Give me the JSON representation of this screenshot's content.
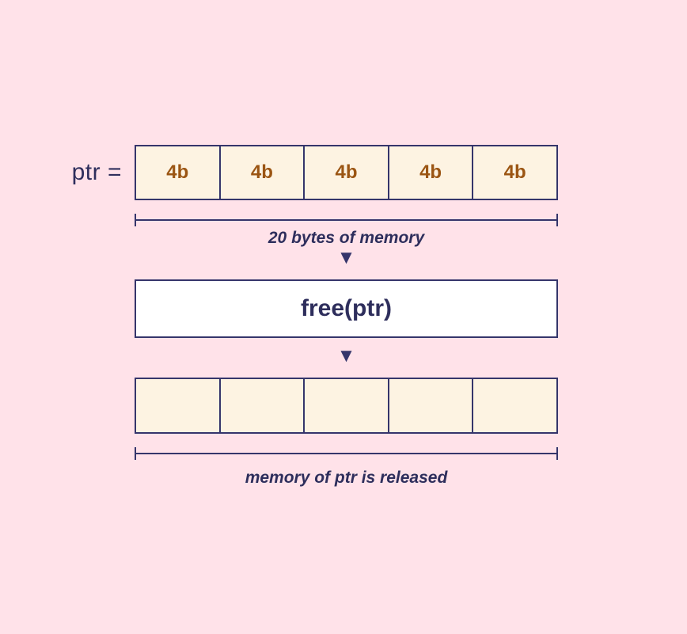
{
  "colors": {
    "background_pink": "#ffe2e9",
    "cell_cream": "#fdf3e2",
    "border_navy": "#35356b",
    "text_navy": "#2e2e5c",
    "cell_text_brown": "#9b5513",
    "operation_box_white": "#ffffff"
  },
  "diagram": {
    "pointer_label": "ptr =",
    "memory_before": {
      "cells": [
        "4b",
        "4b",
        "4b",
        "4b",
        "4b"
      ],
      "caption": "20 bytes of memory"
    },
    "operation_label": "free(ptr)",
    "memory_after": {
      "cells": [
        "",
        "",
        "",
        "",
        ""
      ],
      "caption": "memory of ptr is released"
    },
    "arrow_down_icon": "▼"
  }
}
